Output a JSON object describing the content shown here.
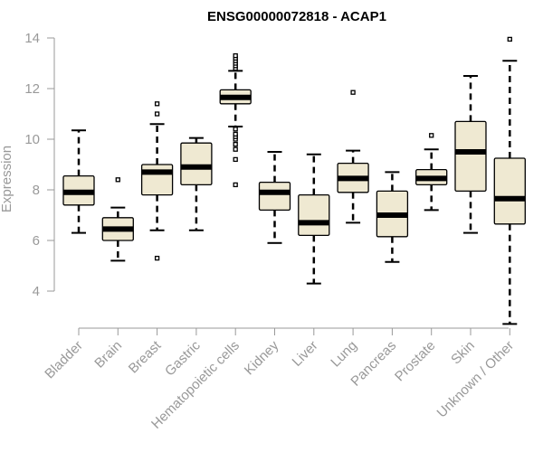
{
  "chart_data": {
    "type": "boxplot",
    "title": "ENSG00000072818 - ACAP1",
    "xlabel": "",
    "ylabel": "Expression",
    "ylim": [
      3.0,
      14.4
    ],
    "yticks": [
      4,
      6,
      8,
      10,
      12,
      14
    ],
    "grid": false,
    "legend": "none",
    "colors": {
      "box_fill": "#efe9d2",
      "box_stroke": "#000000",
      "median": "#000000",
      "axis": "#999999",
      "label": "#999999",
      "title": "#000000"
    },
    "categories": [
      "Bladder",
      "Brain",
      "Breast",
      "Gastric",
      "Hematopoietic cells",
      "Kidney",
      "Liver",
      "Lung",
      "Pancreas",
      "Prostate",
      "Skin",
      "Unknown / Other"
    ],
    "boxes": [
      {
        "whisker_low": 6.3,
        "q1": 7.4,
        "median": 7.9,
        "q3": 8.55,
        "whisker_high": 10.35,
        "outliers": []
      },
      {
        "whisker_low": 5.2,
        "q1": 6.0,
        "median": 6.45,
        "q3": 6.9,
        "whisker_high": 7.3,
        "outliers": [
          8.4
        ]
      },
      {
        "whisker_low": 6.4,
        "q1": 7.8,
        "median": 8.7,
        "q3": 9.0,
        "whisker_high": 10.6,
        "outliers": [
          5.3,
          11.0,
          11.4
        ]
      },
      {
        "whisker_low": 6.4,
        "q1": 8.2,
        "median": 8.9,
        "q3": 9.85,
        "whisker_high": 10.05,
        "outliers": []
      },
      {
        "whisker_low": 10.5,
        "q1": 11.4,
        "median": 11.65,
        "q3": 11.95,
        "whisker_high": 12.7,
        "outliers": [
          8.2,
          9.2,
          9.6,
          9.8,
          10.0,
          10.1,
          10.2,
          10.4,
          12.8,
          12.9,
          13.0,
          13.1,
          13.2,
          13.3
        ]
      },
      {
        "whisker_low": 5.9,
        "q1": 7.2,
        "median": 7.9,
        "q3": 8.3,
        "whisker_high": 9.5,
        "outliers": []
      },
      {
        "whisker_low": 4.3,
        "q1": 6.2,
        "median": 6.7,
        "q3": 7.8,
        "whisker_high": 9.4,
        "outliers": []
      },
      {
        "whisker_low": 6.7,
        "q1": 7.9,
        "median": 8.45,
        "q3": 9.05,
        "whisker_high": 9.55,
        "outliers": [
          11.85
        ]
      },
      {
        "whisker_low": 5.15,
        "q1": 6.15,
        "median": 7.0,
        "q3": 7.95,
        "whisker_high": 8.7,
        "outliers": []
      },
      {
        "whisker_low": 7.2,
        "q1": 8.2,
        "median": 8.45,
        "q3": 8.8,
        "whisker_high": 9.6,
        "outliers": [
          10.15
        ]
      },
      {
        "whisker_low": 6.3,
        "q1": 7.95,
        "median": 9.5,
        "q3": 10.7,
        "whisker_high": 12.5,
        "outliers": []
      },
      {
        "whisker_low": 2.7,
        "q1": 6.65,
        "median": 7.65,
        "q3": 9.25,
        "whisker_high": 13.1,
        "outliers": [
          13.95
        ]
      }
    ]
  }
}
